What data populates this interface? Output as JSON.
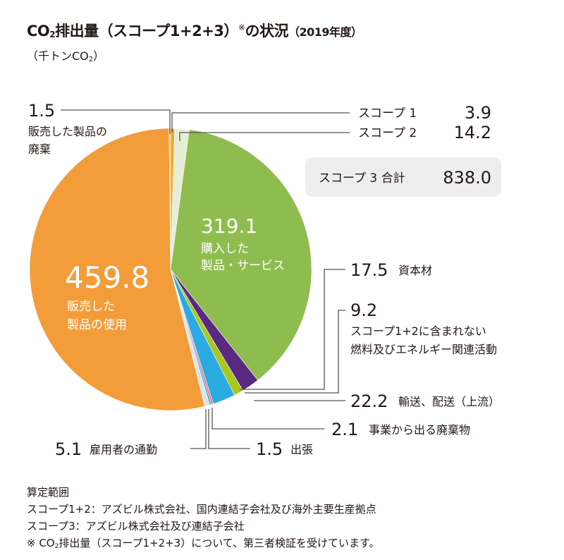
{
  "header": {
    "title_main": "CO",
    "title_sub2": "2",
    "title_rest": "排出量（スコープ1+2+3）",
    "title_note_mark": "※",
    "title_tail": "の状況",
    "title_year": "（2019年度）",
    "unit_pre": "（千トンCO",
    "unit_sub": "2",
    "unit_post": "）"
  },
  "chart_data": {
    "type": "pie",
    "slices": [
      {
        "key": "scope1",
        "value": 3.9,
        "label": "スコープ 1",
        "color": "#f5a623"
      },
      {
        "key": "scope2",
        "value": 14.2,
        "label": "スコープ 2",
        "color": "#e6efd6"
      },
      {
        "key": "purchased",
        "value": 319.1,
        "label": "購入した製品・サービス",
        "color": "#8fbc4f"
      },
      {
        "key": "capital",
        "value": 17.5,
        "label": "資本材",
        "color": "#5a2a82"
      },
      {
        "key": "fuel",
        "value": 9.2,
        "label": "スコープ1+2に含まれない燃料及びエネルギー関連活動",
        "color": "#a8c81e"
      },
      {
        "key": "transport",
        "value": 22.2,
        "label": "輸送、配送（上流）",
        "color": "#29abe2"
      },
      {
        "key": "waste",
        "value": 2.1,
        "label": "事業から出る廃棄物",
        "color": "#f08080"
      },
      {
        "key": "travel",
        "value": 1.5,
        "label": "出張",
        "color": "#3c8dc8"
      },
      {
        "key": "commute",
        "value": 5.1,
        "label": "雇用者の通勤",
        "color": "#d5e8f0"
      },
      {
        "key": "use",
        "value": 459.8,
        "label": "販売した製品の使用",
        "color": "#f39c3a"
      },
      {
        "key": "eol",
        "value": 1.5,
        "label": "販売した製品の廃棄",
        "color": "#f7c48e"
      }
    ],
    "scope3_total_label": "スコープ 3 合計",
    "scope3_total": "838.0"
  },
  "labels": {
    "scope1_label": "スコープ 1",
    "scope1_value": "3.9",
    "scope2_label": "スコープ 2",
    "scope2_value": "14.2",
    "scope3_total_label": "スコープ 3 合計",
    "scope3_total_value": "838.0",
    "purchased_value": "319.1",
    "purchased_line1": "購入した",
    "purchased_line2": "製品・サービス",
    "use_value": "459.8",
    "use_line1": "販売した",
    "use_line2": "製品の使用",
    "eol_value": "1.5",
    "eol_line1": "販売した製品の",
    "eol_line2": "廃棄",
    "capital_value": "17.5",
    "capital_label": "資本材",
    "fuel_value": "9.2",
    "fuel_line1": "スコープ1+2に含まれない",
    "fuel_line2": "燃料及びエネルギー関連活動",
    "transport_value": "22.2",
    "transport_label": "輸送、配送（上流）",
    "waste_value": "2.1",
    "waste_label": "事業から出る廃棄物",
    "travel_value": "1.5",
    "travel_label": "出張",
    "commute_value": "5.1",
    "commute_label": "雇用者の通勤"
  },
  "notes": {
    "heading": "算定範囲",
    "line1": "スコープ1+2：アズビル株式会社、国内連結子会社及び海外主要生産拠点",
    "line2": "スコープ3：アズビル株式会社及び連結子会社",
    "footnote_pre": "※ CO",
    "footnote_sub": "2",
    "footnote_post": "排出量（スコープ1+2+3）について、第三者検証を受けています。"
  }
}
